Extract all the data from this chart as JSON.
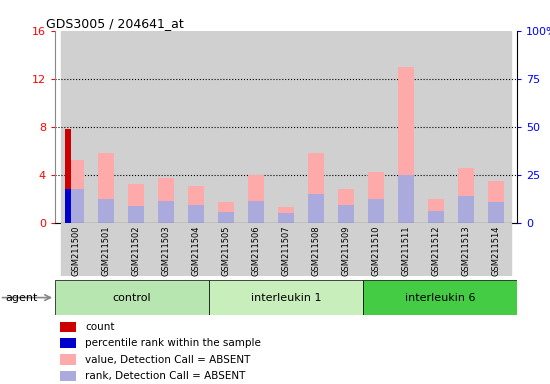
{
  "title": "GDS3005 / 204641_at",
  "samples": [
    "GSM211500",
    "GSM211501",
    "GSM211502",
    "GSM211503",
    "GSM211504",
    "GSM211505",
    "GSM211506",
    "GSM211507",
    "GSM211508",
    "GSM211509",
    "GSM211510",
    "GSM211511",
    "GSM211512",
    "GSM211513",
    "GSM211514"
  ],
  "groups": [
    {
      "name": "control",
      "start": 0,
      "end": 5,
      "color": "#b8e6b0"
    },
    {
      "name": "interleukin 1",
      "start": 5,
      "end": 10,
      "color": "#c8eebc"
    },
    {
      "name": "interleukin 6",
      "start": 10,
      "end": 15,
      "color": "#44cc44"
    }
  ],
  "value_absent": [
    5.2,
    5.8,
    3.2,
    3.7,
    3.1,
    1.7,
    4.0,
    1.3,
    5.8,
    2.8,
    4.2,
    13.0,
    2.0,
    4.6,
    3.5
  ],
  "rank_absent": [
    2.8,
    2.0,
    1.4,
    1.8,
    1.5,
    0.9,
    1.8,
    0.8,
    2.4,
    1.5,
    2.0,
    4.0,
    1.0,
    2.2,
    1.7
  ],
  "count_val": [
    7.8,
    0,
    0,
    0,
    0,
    0,
    0,
    0,
    0,
    0,
    0,
    0,
    0,
    0,
    0
  ],
  "percentile_val": [
    2.8,
    0,
    0,
    0,
    0,
    0,
    0,
    0,
    0,
    0,
    0,
    0,
    0,
    0,
    0
  ],
  "ylim": [
    0,
    16
  ],
  "yticks_left": [
    0,
    4,
    8,
    12,
    16
  ],
  "yticks_right": [
    0,
    25,
    50,
    75,
    100
  ],
  "color_value_absent": "#ffaaaa",
  "color_rank_absent": "#aaaadd",
  "color_count": "#cc0000",
  "color_percentile": "#0000cc",
  "agent_label": "agent",
  "legend_items": [
    {
      "color": "#cc0000",
      "label": "count"
    },
    {
      "color": "#0000cc",
      "label": "percentile rank within the sample"
    },
    {
      "color": "#ffaaaa",
      "label": "value, Detection Call = ABSENT"
    },
    {
      "color": "#aaaadd",
      "label": "rank, Detection Call = ABSENT"
    }
  ]
}
